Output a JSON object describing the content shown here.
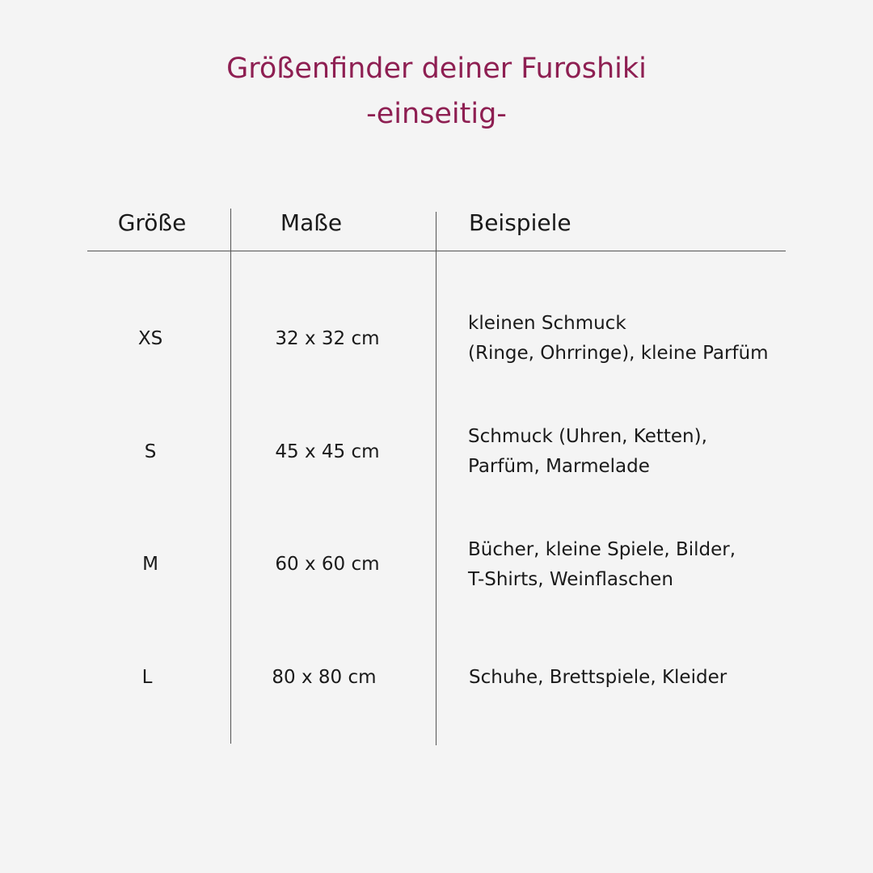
{
  "title": {
    "line1": "Größenfinder deiner Furoshiki",
    "line2": "-einseitig-",
    "color": "#8e1f52"
  },
  "table": {
    "headers": [
      "Größe",
      "Maße",
      "Beispiele"
    ],
    "rows": [
      {
        "size": "XS",
        "dimensions": "32 x 32 cm",
        "examples": [
          "kleinen Schmuck",
          "(Ringe, Ohrringe), kleine Parfüm"
        ]
      },
      {
        "size": "S",
        "dimensions": "45 x 45 cm",
        "examples": [
          "Schmuck (Uhren, Ketten),",
          "Parfüm, Marmelade"
        ]
      },
      {
        "size": "M",
        "dimensions": "60 x 60 cm",
        "examples": [
          "Bücher, kleine Spiele, Bilder,",
          "T-Shirts, Weinflaschen"
        ]
      },
      {
        "size": "L",
        "dimensions": "80 x 80 cm",
        "examples": [
          "Schuhe, Brettspiele, Kleider"
        ]
      }
    ]
  }
}
